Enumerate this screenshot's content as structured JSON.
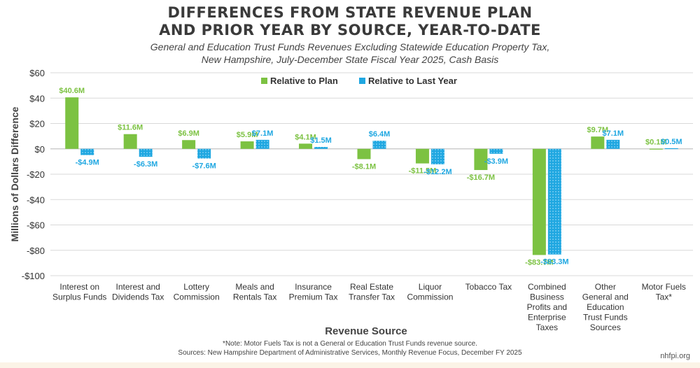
{
  "header": {
    "title_line1": "DIFFERENCES FROM STATE REVENUE PLAN",
    "title_line2": "AND PRIOR YEAR BY SOURCE, YEAR-TO-DATE",
    "subtitle_line1": "General and Education Trust Funds Revenues Excluding Statewide Education Property Tax,",
    "subtitle_line2": "New Hampshire, July-December State Fiscal Year 2025, Cash Basis"
  },
  "footer": {
    "note": "*Note: Motor Fuels Tax is not a General or Education Trust Funds revenue source.",
    "sources": "Sources: New Hampshire Department of Administrative Services, Monthly Revenue Focus, December FY 2025",
    "site": "nhfpi.org"
  },
  "colors": {
    "plan": "#7cc242",
    "last_year": "#1fa7e1",
    "grid": "#d9d9d9",
    "text": "#333333"
  },
  "chart_data": {
    "type": "bar",
    "title": "Differences from State Revenue Plan and Prior Year by Source, Year-to-Date",
    "xlabel": "Revenue Source",
    "ylabel": "Millions of Dollars Difference",
    "ylim": [
      -100,
      60
    ],
    "yticks": [
      60,
      40,
      20,
      0,
      -20,
      -40,
      -60,
      -80,
      -100
    ],
    "ytick_labels": [
      "$60",
      "$40",
      "$20",
      "$0",
      "-$20",
      "-$40",
      "-$60",
      "-$80",
      "-$100"
    ],
    "legend_position": "top",
    "categories": [
      [
        "Interest on",
        "Surplus Funds"
      ],
      [
        "Interest and",
        "Dividends Tax"
      ],
      [
        "Lottery",
        "Commission"
      ],
      [
        "Meals and",
        "Rentals Tax"
      ],
      [
        "Insurance",
        "Premium Tax"
      ],
      [
        "Real Estate",
        "Transfer Tax"
      ],
      [
        "Liquor",
        "Commission"
      ],
      [
        "Tobacco Tax"
      ],
      [
        "Combined",
        "Business",
        "Profits and",
        "Enterprise",
        "Taxes"
      ],
      [
        "Other",
        "General and",
        "Education",
        "Trust Funds",
        "Sources"
      ],
      [
        "Motor Fuels",
        "Tax*"
      ]
    ],
    "series": [
      {
        "name": "Relative to Plan",
        "values": [
          40.6,
          11.6,
          6.9,
          5.9,
          4.1,
          -8.1,
          -11.5,
          -16.7,
          -83.7,
          9.7,
          0.1
        ],
        "labels": [
          "$40.6M",
          "$11.6M",
          "$6.9M",
          "$5.9M",
          "$4.1M",
          "-$8.1M",
          "-$11.5M",
          "-$16.7M",
          "-$83.7M",
          "$9.7M",
          "$0.1M"
        ]
      },
      {
        "name": "Relative to Last Year",
        "values": [
          -4.9,
          -6.3,
          -7.6,
          7.1,
          1.5,
          6.4,
          -12.2,
          -3.9,
          -83.3,
          7.1,
          0.5
        ],
        "labels": [
          "-$4.9M",
          "-$6.3M",
          "-$7.6M",
          "$7.1M",
          "$1.5M",
          "$6.4M",
          "-$12.2M",
          "-$3.9M",
          "-$83.3M",
          "$7.1M",
          "$0.5M"
        ]
      }
    ]
  }
}
